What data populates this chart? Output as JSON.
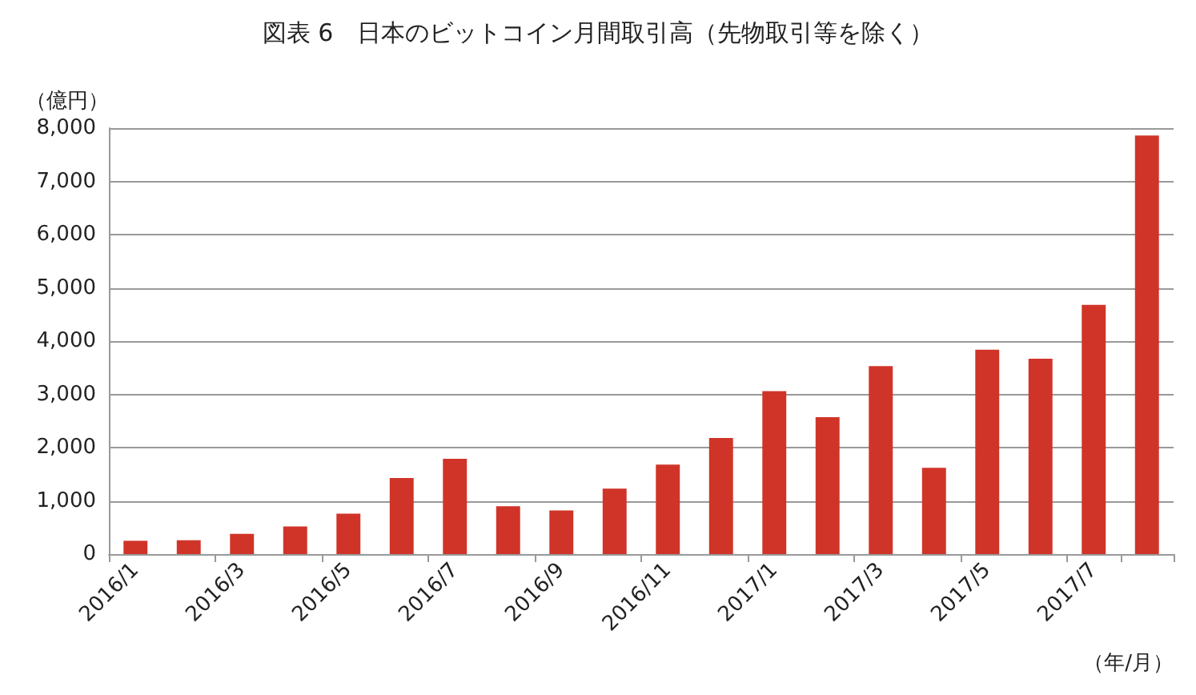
{
  "chart_data": {
    "type": "bar",
    "title": "図表 6　日本のビットコイン月間取引高（先物取引等を除く）",
    "ylabel": "（億円）",
    "xlabel": "（年/月）",
    "categories": [
      "2016/1",
      null,
      "2016/3",
      null,
      "2016/5",
      null,
      "2016/7",
      null,
      "2016/9",
      null,
      "2016/11",
      null,
      "2017/1",
      null,
      "2017/3",
      null,
      "2017/5",
      null,
      "2017/7",
      null
    ],
    "values": [
      250,
      260,
      380,
      520,
      760,
      1430,
      1790,
      900,
      820,
      1230,
      1680,
      2180,
      3060,
      2570,
      3530,
      1620,
      3840,
      3670,
      4680,
      7860
    ],
    "color": "#d03428",
    "ylim": [
      0,
      8000
    ],
    "yticks": [
      0,
      {
        "value": 1000,
        "label": "1,000"
      },
      {
        "value": 2000,
        "label": "2,000"
      },
      {
        "value": 3000,
        "label": "3,000"
      },
      {
        "value": 4000,
        "label": "4,000"
      },
      {
        "value": 5000,
        "label": "5,000"
      },
      {
        "value": 6000,
        "label": "6,000"
      },
      {
        "value": 7000,
        "label": "7,000"
      },
      {
        "value": 8000,
        "label": "8,000"
      }
    ],
    "grid": "y"
  }
}
